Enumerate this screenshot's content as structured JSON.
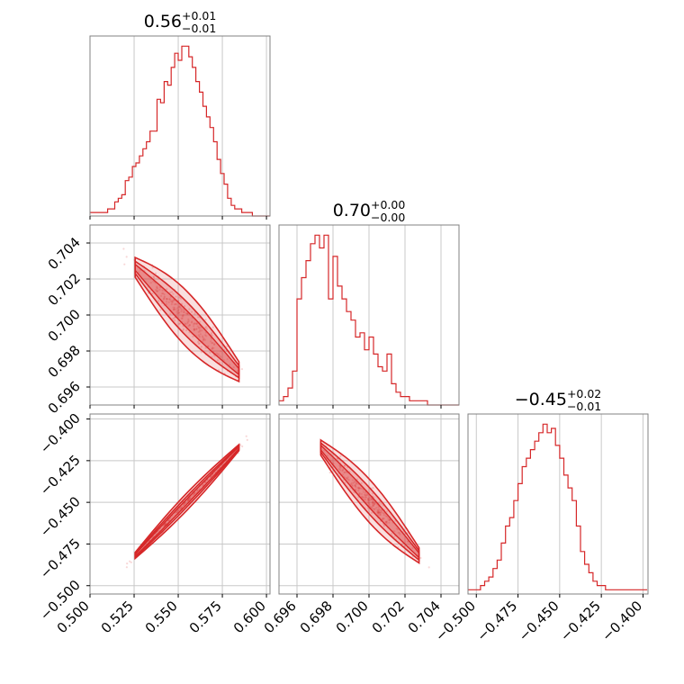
{
  "figure": {
    "type": "corner-plot",
    "accent_color": "#d62728"
  },
  "chart_data": [
    {
      "id": "p0",
      "type": "histogram",
      "title": {
        "value": "0.56",
        "plus": "+0.01",
        "minus": "−0.01"
      },
      "xlim": [
        0.5,
        0.602
      ],
      "xticks": [
        0.5,
        0.525,
        0.55,
        0.575,
        0.6
      ],
      "bin_start": 0.5,
      "bin_width": 0.002,
      "counts": [
        1,
        1,
        1,
        1,
        1,
        2,
        2,
        4,
        5,
        6,
        10,
        11,
        14,
        15,
        17,
        19,
        21,
        24,
        24,
        33,
        32,
        38,
        37,
        42,
        46,
        44,
        48,
        48,
        45,
        42,
        38,
        35,
        31,
        28,
        25,
        21,
        16,
        12,
        9,
        5,
        3,
        2,
        2,
        1,
        1,
        1,
        0,
        0,
        0,
        0,
        0
      ]
    },
    {
      "id": "p1",
      "type": "histogram",
      "title": {
        "value": "0.70",
        "plus": "+0.00",
        "minus": "−0.00"
      },
      "xlim": [
        0.695,
        0.705
      ],
      "xticks": [
        0.696,
        0.698,
        0.7,
        0.702,
        0.704
      ],
      "bin_start": 0.695,
      "bin_width": 0.00025,
      "counts": [
        1,
        2,
        4,
        8,
        25,
        30,
        34,
        38,
        40,
        37,
        40,
        25,
        35,
        28,
        25,
        22,
        20,
        16,
        17,
        13,
        16,
        12,
        9,
        8,
        12,
        5,
        3,
        2,
        2,
        1,
        1,
        1,
        1,
        0,
        0,
        0,
        0,
        0,
        0,
        0
      ]
    },
    {
      "id": "p2",
      "type": "histogram",
      "title": {
        "value": "−0.45",
        "plus": "+0.02",
        "minus": "−0.01"
      },
      "xlim": [
        -0.505,
        -0.397
      ],
      "xticks": [
        -0.5,
        -0.475,
        -0.45,
        -0.425,
        -0.4
      ],
      "xticklabels": [
        "−0.500",
        "−0.475",
        "−0.450",
        "−0.425",
        "−0.400"
      ],
      "bin_start": -0.505,
      "bin_width": 0.0025,
      "counts": [
        1,
        1,
        1,
        2,
        3,
        4,
        6,
        8,
        12,
        16,
        18,
        22,
        26,
        30,
        32,
        34,
        36,
        38,
        40,
        38,
        39,
        35,
        32,
        28,
        25,
        22,
        16,
        10,
        7,
        5,
        3,
        2,
        2,
        1,
        1,
        1,
        1,
        1,
        1,
        1,
        1,
        1,
        1
      ]
    },
    {
      "id": "p10",
      "type": "scatter-contour",
      "xlim": [
        0.5,
        0.602
      ],
      "ylim": [
        0.695,
        0.705
      ],
      "yticks": [
        0.696,
        0.698,
        0.7,
        0.702,
        0.704
      ],
      "trend": {
        "x": [
          0.52,
          0.59
        ],
        "y": [
          0.7032,
          0.6963
        ]
      },
      "spread": 0.0006
    },
    {
      "id": "p20",
      "type": "scatter-contour",
      "xlim": [
        0.5,
        0.602
      ],
      "ylim": [
        -0.505,
        -0.397
      ],
      "yticks": [
        -0.5,
        -0.475,
        -0.45,
        -0.425,
        -0.4
      ],
      "yticklabels": [
        "−0.500",
        "−0.475",
        "−0.450",
        "−0.425",
        "−0.400"
      ],
      "trend": {
        "x": [
          0.52,
          0.59
        ],
        "y": [
          -0.488,
          -0.411
        ]
      },
      "spread": 0.002
    },
    {
      "id": "p21",
      "type": "scatter-contour",
      "xlim": [
        0.695,
        0.705
      ],
      "ylim": [
        -0.505,
        -0.397
      ],
      "trend": {
        "x": [
          0.6968,
          0.7033
        ],
        "y": [
          -0.411,
          -0.488
        ]
      },
      "spread": 0.005
    }
  ]
}
